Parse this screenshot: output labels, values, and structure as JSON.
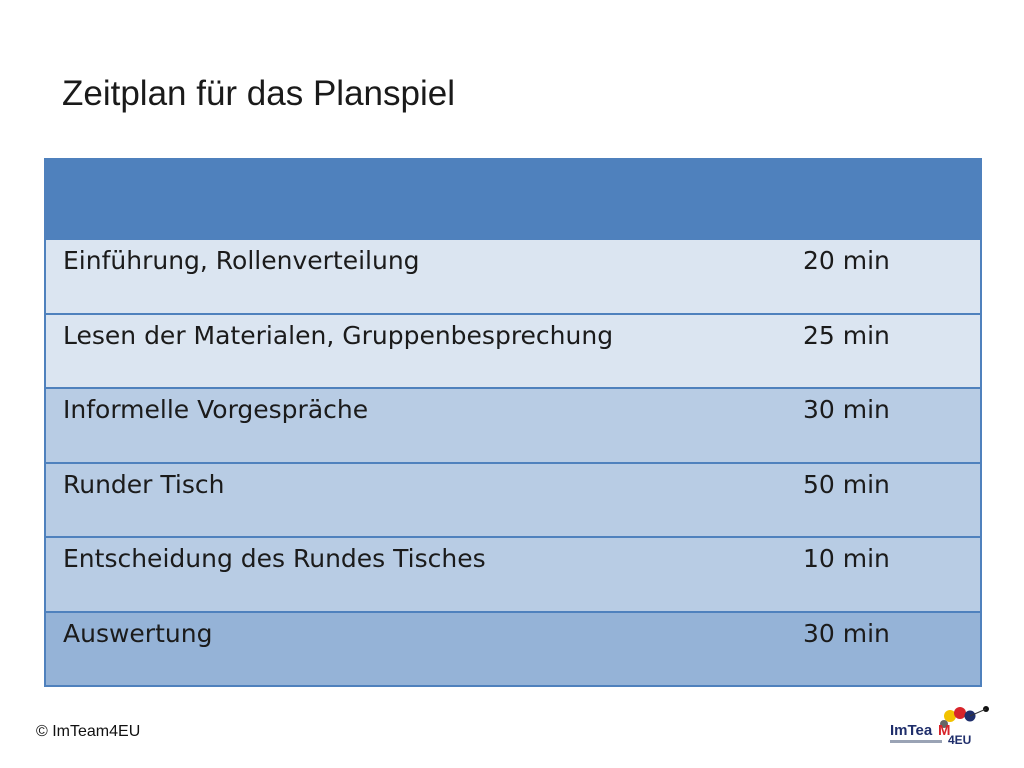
{
  "slide": {
    "title": "Zeitplan für das Planspiel"
  },
  "table": {
    "header_label": "",
    "rows": [
      {
        "activity": "Einführung, Rollenverteilung",
        "duration": "20 min"
      },
      {
        "activity": "Lesen der Materialen, Gruppenbesprechung",
        "duration": "25 min"
      },
      {
        "activity": "Informelle Vorgespräche",
        "duration": "30 min"
      },
      {
        "activity": "Runder Tisch",
        "duration": "50 min"
      },
      {
        "activity": "Entscheidung des Rundes Tisches",
        "duration": "10 min"
      },
      {
        "activity": "Auswertung",
        "duration": "30 min"
      }
    ]
  },
  "footer": {
    "copyright": "© ImTeam4EU",
    "logo_text_im": "ImTea",
    "logo_text_m": "M",
    "logo_text_4eu": "4EU"
  },
  "colors": {
    "header_blue": "#4f81bd",
    "row_light": "#dbe5f1",
    "row_mid": "#b8cce4",
    "row_dark": "#95b3d7"
  }
}
